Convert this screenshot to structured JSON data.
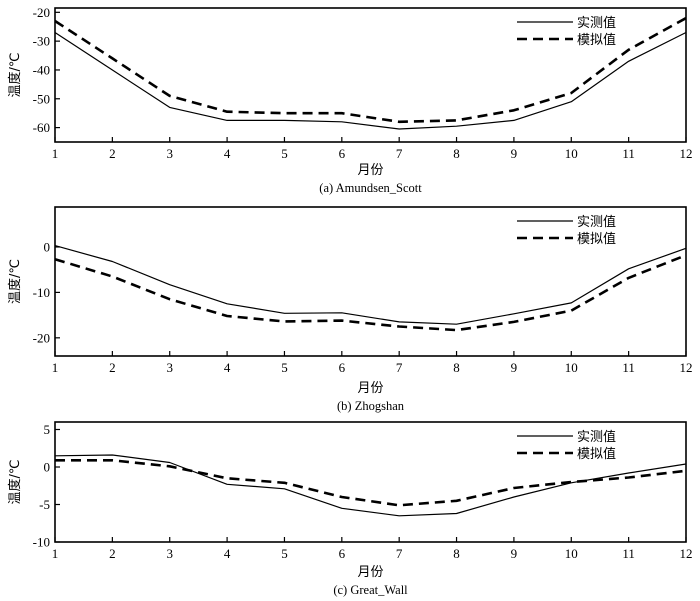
{
  "chart_data": [
    {
      "type": "line",
      "caption": "(a) Amundsen_Scott",
      "xlabel": "月份",
      "ylabel": "温度/℃",
      "x": [
        1,
        2,
        3,
        4,
        5,
        6,
        7,
        8,
        9,
        10,
        11,
        12
      ],
      "xticks": [
        "1",
        "2",
        "3",
        "4",
        "5",
        "6",
        "7",
        "8",
        "9",
        "10",
        "11",
        "12"
      ],
      "xlim": [
        1,
        12
      ],
      "ylim": [
        -65,
        -18.5
      ],
      "yticks": [
        -20,
        -30,
        -40,
        -50,
        -60
      ],
      "ytick_labels": [
        "-20",
        "-30",
        "-40",
        "-50",
        "-60"
      ],
      "legend_position": "top-right",
      "grid": false,
      "series": [
        {
          "name": "实测值",
          "style": "solid",
          "values": [
            -27,
            -40,
            -53,
            -57.5,
            -57.5,
            -58,
            -60.5,
            -59.5,
            -57.5,
            -51,
            -37,
            -27
          ]
        },
        {
          "name": "模拟值",
          "style": "dashed",
          "values": [
            -23,
            -36,
            -49,
            -54.5,
            -55,
            -55,
            -58,
            -57.5,
            -54,
            -48,
            -33,
            -22
          ]
        }
      ]
    },
    {
      "type": "line",
      "caption": "(b) Zhogshan",
      "xlabel": "月份",
      "ylabel": "温度/℃",
      "x": [
        1,
        2,
        3,
        4,
        5,
        6,
        7,
        8,
        9,
        10,
        11,
        12
      ],
      "xticks": [
        "1",
        "2",
        "3",
        "4",
        "5",
        "6",
        "7",
        "8",
        "9",
        "10",
        "11",
        "12"
      ],
      "xlim": [
        1,
        12
      ],
      "ylim": [
        -24,
        8.8
      ],
      "yticks": [
        0,
        -10,
        -20
      ],
      "ytick_labels": [
        "0",
        "-10",
        "-20"
      ],
      "legend_position": "top-right",
      "grid": false,
      "series": [
        {
          "name": "实测值",
          "style": "solid",
          "values": [
            0.3,
            -3.2,
            -8.3,
            -12.5,
            -14.6,
            -14.5,
            -16.5,
            -17,
            -14.7,
            -12.3,
            -4.8,
            -0.3
          ]
        },
        {
          "name": "模拟值",
          "style": "dashed",
          "values": [
            -2.7,
            -6.5,
            -11.5,
            -15.2,
            -16.4,
            -16.2,
            -17.5,
            -18.3,
            -16.5,
            -14,
            -6.8,
            -1.8
          ]
        }
      ]
    },
    {
      "type": "line",
      "caption": "(c) Great_Wall",
      "xlabel": "月份",
      "ylabel": "温度/℃",
      "x": [
        1,
        2,
        3,
        4,
        5,
        6,
        7,
        8,
        9,
        10,
        11,
        12
      ],
      "xticks": [
        "1",
        "2",
        "3",
        "4",
        "5",
        "6",
        "7",
        "8",
        "9",
        "10",
        "11",
        "12"
      ],
      "xlim": [
        1,
        12
      ],
      "ylim": [
        -10,
        6
      ],
      "yticks": [
        5,
        0,
        -5,
        -10
      ],
      "ytick_labels": [
        "5",
        "0",
        "-5",
        "-10"
      ],
      "legend_position": "top-right",
      "grid": false,
      "series": [
        {
          "name": "实测值",
          "style": "solid",
          "values": [
            1.5,
            1.6,
            0.6,
            -2.3,
            -2.9,
            -5.5,
            -6.5,
            -6.2,
            -4,
            -2.1,
            -0.8,
            0.4
          ]
        },
        {
          "name": "模拟值",
          "style": "dashed",
          "values": [
            0.9,
            0.9,
            0.1,
            -1.5,
            -2.1,
            -4,
            -5.1,
            -4.5,
            -2.8,
            -2,
            -1.4,
            -0.5
          ]
        }
      ]
    }
  ]
}
